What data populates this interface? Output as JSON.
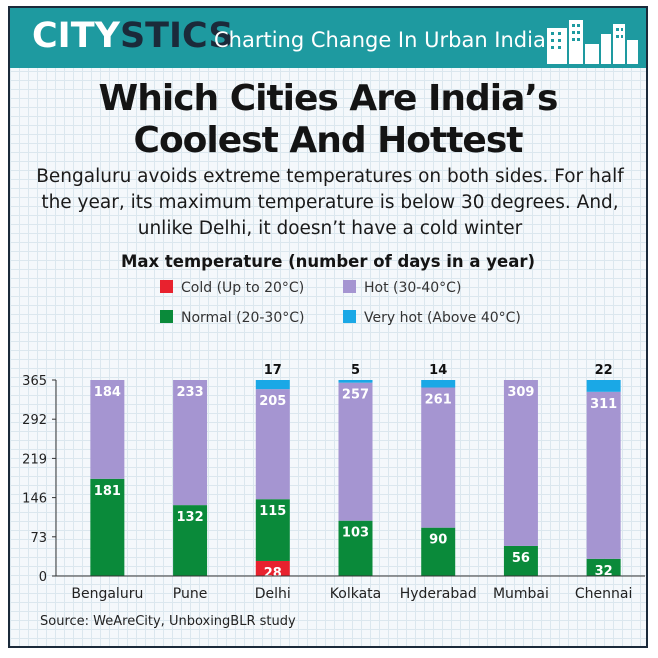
{
  "header": {
    "brand_part1": "CITY",
    "brand_part2": "STICS",
    "tagline": "Charting Change In Urban India"
  },
  "title_line1": "Which Cities Are India’s",
  "title_line2": "Coolest And Hottest",
  "subtitle": "Bengaluru avoids extreme temperatures on both sides. For half the year, its maximum temperature is below 30 degrees. And, unlike Delhi, it doesn’t have a cold winter",
  "source": "Source: WeAreCity, UnboxingBLR study",
  "colors": {
    "cold": "#e8222e",
    "normal": "#0a8a3a",
    "hot": "#a595d1",
    "very_hot": "#1aa8e6",
    "header_bg": "#1e9aa0"
  },
  "chart_data": {
    "type": "bar",
    "stacked": true,
    "title": "Max temperature (number of days in a year)",
    "categories": [
      "Bengaluru",
      "Pune",
      "Delhi",
      "Kolkata",
      "Hyderabad",
      "Mumbai",
      "Chennai"
    ],
    "series": [
      {
        "name": "Cold (Up to 20°C)",
        "key": "cold",
        "values": [
          0,
          0,
          28,
          0,
          0,
          0,
          0
        ]
      },
      {
        "name": "Normal (20-30°C)",
        "key": "normal",
        "values": [
          181,
          132,
          115,
          103,
          90,
          56,
          32
        ]
      },
      {
        "name": "Hot (30-40°C)",
        "key": "hot",
        "values": [
          184,
          233,
          205,
          257,
          261,
          309,
          311
        ]
      },
      {
        "name": "Very hot (Above 40°C)",
        "key": "very_hot",
        "values": [
          0,
          0,
          17,
          5,
          14,
          0,
          22
        ]
      }
    ],
    "yticks": [
      0,
      73,
      146,
      219,
      292,
      365
    ],
    "ylim": [
      0,
      365
    ],
    "grid": false,
    "legend_position": "top"
  }
}
